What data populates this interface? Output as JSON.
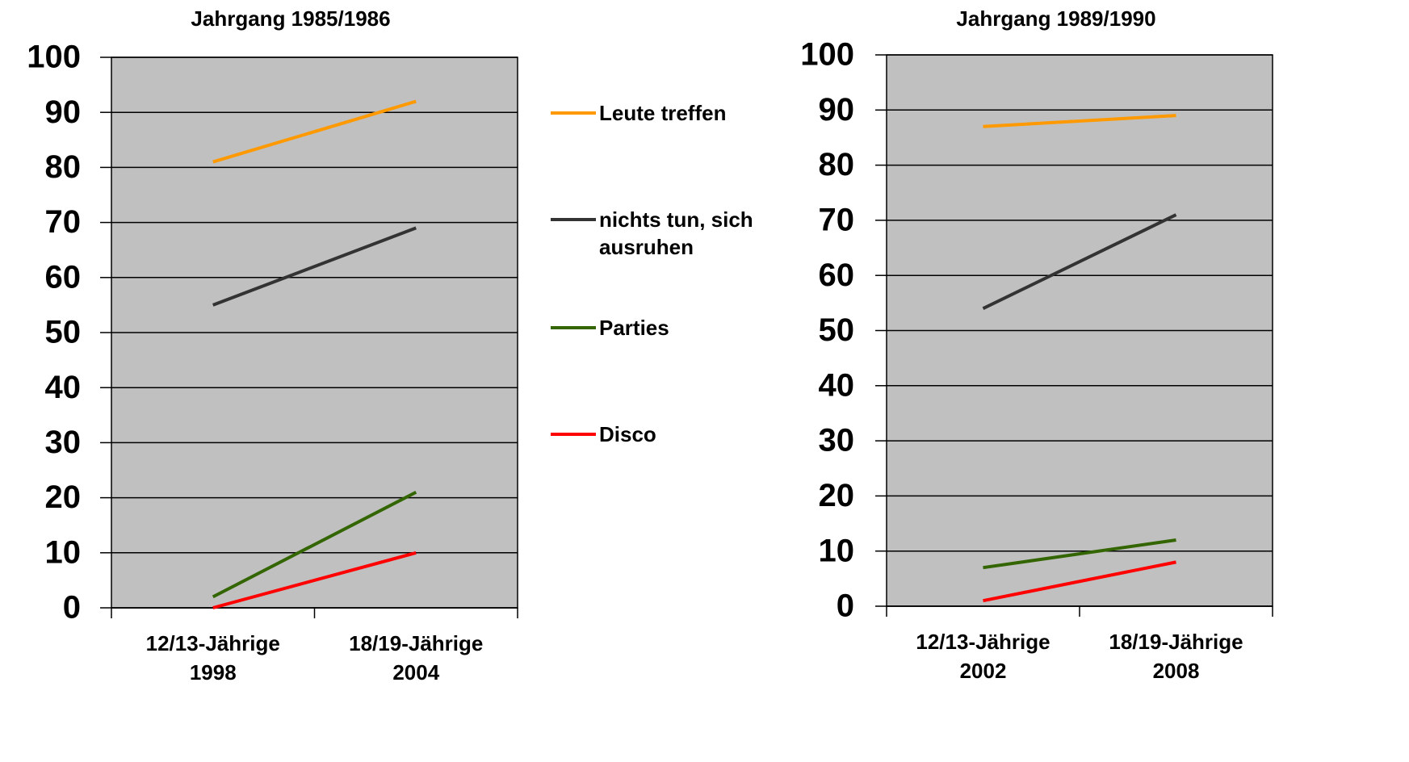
{
  "chart_data": [
    {
      "type": "line",
      "title": "Jahrgang 1985/1986",
      "categories": [
        [
          "12/13-Jährige",
          "1998"
        ],
        [
          "18/19-Jährige",
          "2004"
        ]
      ],
      "series": [
        {
          "name": "Leute treffen",
          "color": "#ff9900",
          "values": [
            81,
            92
          ]
        },
        {
          "name": "nichts tun, sich ausruhen",
          "color": "#333333",
          "values": [
            55,
            69
          ]
        },
        {
          "name": "Parties",
          "color": "#336600",
          "values": [
            2,
            21
          ]
        },
        {
          "name": "Disco",
          "color": "#ff0000",
          "values": [
            0,
            10
          ]
        }
      ],
      "ylim": [
        0,
        100
      ],
      "yticks": [
        0,
        10,
        20,
        30,
        40,
        50,
        60,
        70,
        80,
        90,
        100
      ],
      "grid": true
    },
    {
      "type": "line",
      "title": "Jahrgang 1989/1990",
      "categories": [
        [
          "12/13-Jährige",
          "2002"
        ],
        [
          "18/19-Jährige",
          "2008"
        ]
      ],
      "series": [
        {
          "color": "#ff9900",
          "values": [
            87,
            89
          ]
        },
        {
          "color": "#333333",
          "values": [
            54,
            71
          ]
        },
        {
          "color": "#336600",
          "values": [
            7,
            12
          ]
        },
        {
          "color": "#ff0000",
          "values": [
            1,
            8
          ]
        }
      ],
      "ylim": [
        0,
        100
      ],
      "yticks": [
        0,
        10,
        20,
        30,
        40,
        50,
        60,
        70,
        80,
        90,
        100
      ],
      "grid": true
    }
  ]
}
